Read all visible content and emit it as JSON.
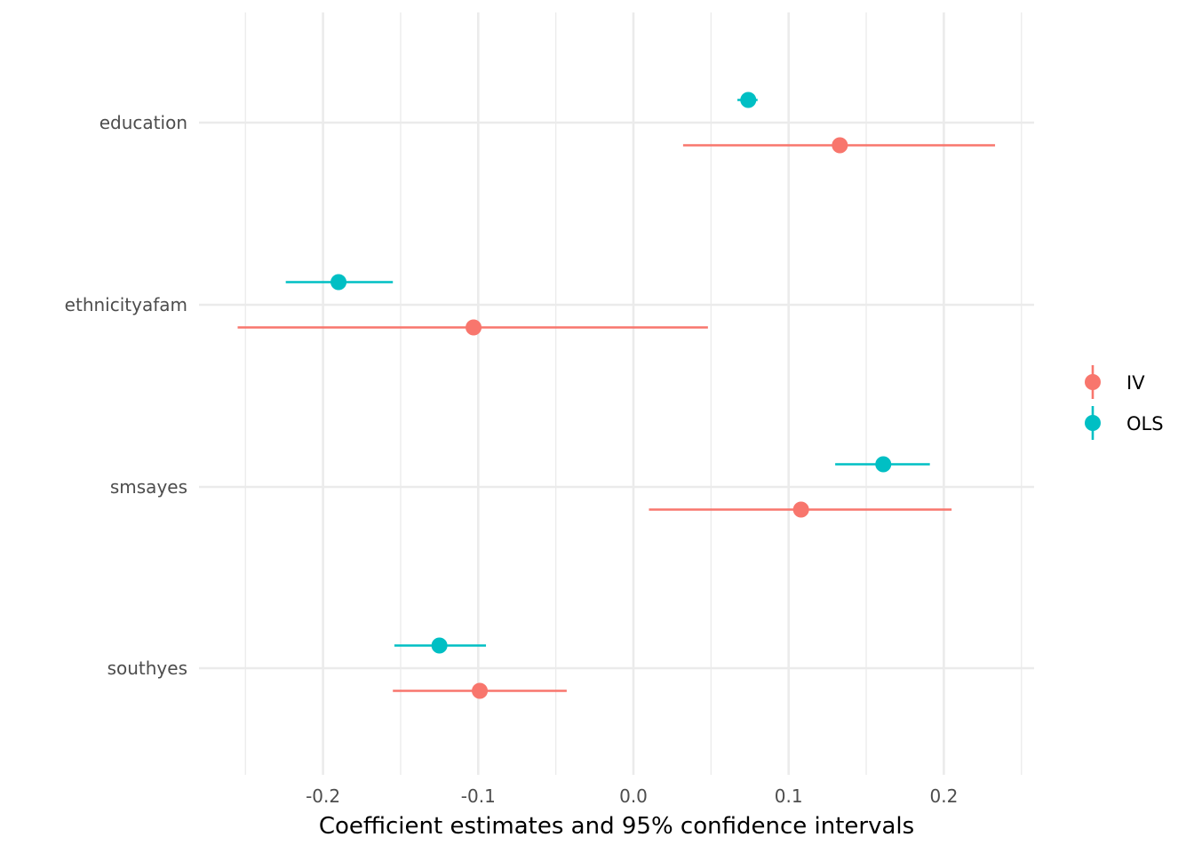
{
  "chart_data": {
    "type": "scatter",
    "subtype": "coefficient-plot",
    "xlabel": "Coefficient estimates and 95% confidence intervals",
    "ylabel": "",
    "xlim": [
      -0.2555,
      0.2555
    ],
    "x_ticks": [
      -0.2,
      -0.1,
      0.0,
      0.1,
      0.2
    ],
    "x_tick_labels": [
      "-0.2",
      "-0.1",
      "0.0",
      "0.1",
      "0.2"
    ],
    "categories": [
      "education",
      "ethnicityafam",
      "smsayes",
      "southyes"
    ],
    "grid": true,
    "legend_position": "right",
    "series": [
      {
        "name": "IV",
        "color": "#F8766D",
        "estimates": [
          0.133,
          -0.103,
          0.108,
          -0.099
        ],
        "ci_low": [
          0.032,
          -0.255,
          0.01,
          -0.155
        ],
        "ci_high": [
          0.233,
          0.048,
          0.205,
          -0.043
        ]
      },
      {
        "name": "OLS",
        "color": "#00BFC4",
        "estimates": [
          0.074,
          -0.19,
          0.161,
          -0.125
        ],
        "ci_low": [
          0.067,
          -0.224,
          0.13,
          -0.154
        ],
        "ci_high": [
          0.08,
          -0.155,
          0.191,
          -0.095
        ]
      }
    ]
  }
}
